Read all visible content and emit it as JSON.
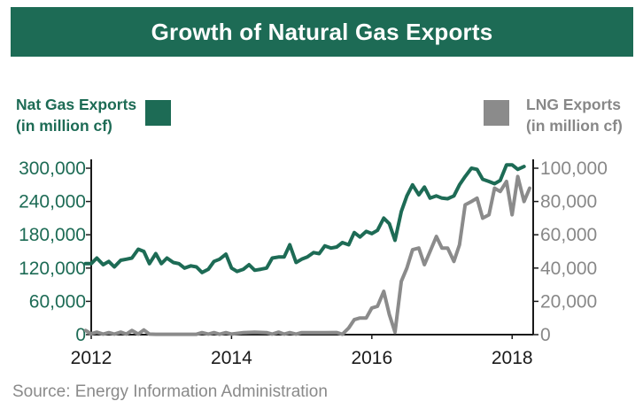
{
  "chart_data": {
    "type": "line",
    "title": "Growth of Natural Gas Exports",
    "x_ticks": [
      "2012",
      "2014",
      "2016",
      "2018"
    ],
    "xlim": [
      2012,
      2018.3
    ],
    "left_axis": {
      "label_lines": [
        "Nat Gas Exports",
        "(in million cf)"
      ],
      "ticks": [
        "300,000",
        "240,000",
        "180,000",
        "120,000",
        "60,000",
        "0"
      ],
      "ylim": [
        0,
        300000
      ]
    },
    "right_axis": {
      "label_lines": [
        "LNG Exports",
        "(in million cf)"
      ],
      "ticks": [
        "100,000",
        "80,000",
        "60,000",
        "40,000",
        "20,000",
        "0"
      ],
      "ylim": [
        0,
        100000
      ]
    },
    "series": [
      {
        "name": "Nat Gas Exports (in million cf)",
        "axis": "left",
        "color": "#1d6b55",
        "points": [
          [
            2011.92,
            128000
          ],
          [
            2012.0,
            128000
          ],
          [
            2012.08,
            138000
          ],
          [
            2012.17,
            126000
          ],
          [
            2012.25,
            132000
          ],
          [
            2012.33,
            122000
          ],
          [
            2012.42,
            134000
          ],
          [
            2012.5,
            136000
          ],
          [
            2012.58,
            138000
          ],
          [
            2012.67,
            154000
          ],
          [
            2012.75,
            150000
          ],
          [
            2012.83,
            128000
          ],
          [
            2012.92,
            146000
          ],
          [
            2013.0,
            128000
          ],
          [
            2013.08,
            138000
          ],
          [
            2013.17,
            130000
          ],
          [
            2013.25,
            128000
          ],
          [
            2013.33,
            120000
          ],
          [
            2013.42,
            124000
          ],
          [
            2013.5,
            122000
          ],
          [
            2013.58,
            112000
          ],
          [
            2013.67,
            118000
          ],
          [
            2013.75,
            132000
          ],
          [
            2013.83,
            136000
          ],
          [
            2013.92,
            145000
          ],
          [
            2014.0,
            120000
          ],
          [
            2014.08,
            114000
          ],
          [
            2014.17,
            118000
          ],
          [
            2014.25,
            126000
          ],
          [
            2014.33,
            116000
          ],
          [
            2014.42,
            118000
          ],
          [
            2014.5,
            120000
          ],
          [
            2014.58,
            138000
          ],
          [
            2014.67,
            140000
          ],
          [
            2014.75,
            140000
          ],
          [
            2014.83,
            162000
          ],
          [
            2014.92,
            130000
          ],
          [
            2015.0,
            136000
          ],
          [
            2015.08,
            140000
          ],
          [
            2015.17,
            148000
          ],
          [
            2015.25,
            146000
          ],
          [
            2015.33,
            160000
          ],
          [
            2015.42,
            156000
          ],
          [
            2015.5,
            158000
          ],
          [
            2015.58,
            166000
          ],
          [
            2015.67,
            162000
          ],
          [
            2015.75,
            184000
          ],
          [
            2015.83,
            176000
          ],
          [
            2015.92,
            186000
          ],
          [
            2016.0,
            182000
          ],
          [
            2016.08,
            188000
          ],
          [
            2016.17,
            210000
          ],
          [
            2016.25,
            200000
          ],
          [
            2016.33,
            170000
          ],
          [
            2016.42,
            222000
          ],
          [
            2016.5,
            250000
          ],
          [
            2016.58,
            270000
          ],
          [
            2016.67,
            252000
          ],
          [
            2016.75,
            266000
          ],
          [
            2016.83,
            246000
          ],
          [
            2016.92,
            250000
          ],
          [
            2017.0,
            246000
          ],
          [
            2017.08,
            245000
          ],
          [
            2017.17,
            250000
          ],
          [
            2017.25,
            270000
          ],
          [
            2017.33,
            285000
          ],
          [
            2017.42,
            300000
          ],
          [
            2017.5,
            298000
          ],
          [
            2017.58,
            280000
          ],
          [
            2017.67,
            276000
          ],
          [
            2017.75,
            272000
          ],
          [
            2017.83,
            278000
          ],
          [
            2017.92,
            306000
          ],
          [
            2018.0,
            306000
          ],
          [
            2018.08,
            298000
          ],
          [
            2018.17,
            303000
          ]
        ]
      },
      {
        "name": "LNG Exports (in million cf)",
        "axis": "right",
        "color": "#8b8b8b",
        "points": [
          [
            2011.92,
            2500
          ],
          [
            2012.0,
            500
          ],
          [
            2012.08,
            1500
          ],
          [
            2012.17,
            300
          ],
          [
            2012.25,
            1200
          ],
          [
            2012.33,
            300
          ],
          [
            2012.42,
            1500
          ],
          [
            2012.5,
            300
          ],
          [
            2012.58,
            2500
          ],
          [
            2012.67,
            300
          ],
          [
            2012.75,
            2800
          ],
          [
            2012.83,
            300
          ],
          [
            2012.92,
            200
          ],
          [
            2013.0,
            200
          ],
          [
            2013.17,
            200
          ],
          [
            2013.33,
            200
          ],
          [
            2013.5,
            200
          ],
          [
            2013.58,
            1200
          ],
          [
            2013.67,
            300
          ],
          [
            2013.75,
            1200
          ],
          [
            2013.83,
            200
          ],
          [
            2013.92,
            1200
          ],
          [
            2014.0,
            300
          ],
          [
            2014.17,
            1200
          ],
          [
            2014.33,
            1500
          ],
          [
            2014.5,
            1200
          ],
          [
            2014.58,
            300
          ],
          [
            2014.67,
            1500
          ],
          [
            2014.75,
            300
          ],
          [
            2014.83,
            1200
          ],
          [
            2014.92,
            300
          ],
          [
            2015.0,
            1200
          ],
          [
            2015.17,
            1200
          ],
          [
            2015.33,
            1200
          ],
          [
            2015.5,
            1300
          ],
          [
            2015.58,
            200
          ],
          [
            2015.67,
            4000
          ],
          [
            2015.75,
            9000
          ],
          [
            2015.83,
            10000
          ],
          [
            2015.92,
            10000
          ],
          [
            2016.0,
            16000
          ],
          [
            2016.08,
            17000
          ],
          [
            2016.17,
            26000
          ],
          [
            2016.25,
            12000
          ],
          [
            2016.33,
            1500
          ],
          [
            2016.42,
            32000
          ],
          [
            2016.5,
            40000
          ],
          [
            2016.58,
            51000
          ],
          [
            2016.67,
            52000
          ],
          [
            2016.75,
            42000
          ],
          [
            2016.83,
            50000
          ],
          [
            2016.92,
            59000
          ],
          [
            2017.0,
            52000
          ],
          [
            2017.08,
            52000
          ],
          [
            2017.17,
            44000
          ],
          [
            2017.25,
            54000
          ],
          [
            2017.33,
            78000
          ],
          [
            2017.42,
            80000
          ],
          [
            2017.5,
            82000
          ],
          [
            2017.58,
            70000
          ],
          [
            2017.67,
            72000
          ],
          [
            2017.75,
            88000
          ],
          [
            2017.83,
            86000
          ],
          [
            2017.92,
            92000
          ],
          [
            2018.0,
            72000
          ],
          [
            2018.08,
            95000
          ],
          [
            2018.17,
            80000
          ],
          [
            2018.25,
            88000
          ]
        ]
      }
    ],
    "grid": false,
    "legend": "top"
  },
  "footer": {
    "source": "Source: Energy Information Administration"
  }
}
